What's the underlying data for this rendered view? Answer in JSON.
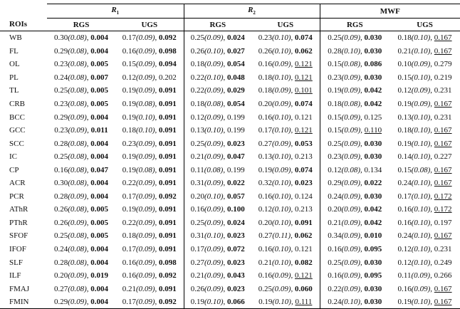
{
  "header": {
    "groups": [
      {
        "label": "R",
        "sub": "1"
      },
      {
        "label": "R",
        "sub": "2"
      },
      {
        "label": "MWF",
        "sub": ""
      }
    ],
    "roi_label": "ROIs",
    "subcols": [
      "RGS",
      "UGS",
      "RGS",
      "UGS",
      "RGS",
      "UGS"
    ]
  },
  "rows": [
    {
      "roi": "WB",
      "cells": [
        {
          "m": "0.30",
          "sd": "(0.08)",
          "p": "0.004",
          "s": "b"
        },
        {
          "m": "0.17",
          "sd": "(0.09)",
          "p": "0.092",
          "s": "b"
        },
        {
          "m": "0.25",
          "sd": "(0.09)",
          "p": "0.024",
          "s": "b"
        },
        {
          "m": "0.23",
          "sd": "(0.10)",
          "p": "0.074",
          "s": "b"
        },
        {
          "m": "0.25",
          "sd": "(0.09)",
          "p": "0.030",
          "s": "b"
        },
        {
          "m": "0.18",
          "sd": "(0.10)",
          "p": "0.167",
          "s": "u"
        }
      ]
    },
    {
      "roi": "FL",
      "cells": [
        {
          "m": "0.29",
          "sd": "(0.08)",
          "p": "0.004",
          "s": "b"
        },
        {
          "m": "0.16",
          "sd": "(0.09)",
          "p": "0.098",
          "s": "b"
        },
        {
          "m": "0.26",
          "sd": "(0.10)",
          "p": "0.027",
          "s": "b"
        },
        {
          "m": "0.26",
          "sd": "(0.10)",
          "p": "0.062",
          "s": "b"
        },
        {
          "m": "0.28",
          "sd": "(0.10)",
          "p": "0.030",
          "s": "b"
        },
        {
          "m": "0.21",
          "sd": "(0.10)",
          "p": "0.167",
          "s": "u"
        }
      ]
    },
    {
      "roi": "OL",
      "cells": [
        {
          "m": "0.23",
          "sd": "(0.08)",
          "p": "0.005",
          "s": "b"
        },
        {
          "m": "0.15",
          "sd": "(0.09)",
          "p": "0.094",
          "s": "b"
        },
        {
          "m": "0.18",
          "sd": "(0.09)",
          "p": "0.054",
          "s": "b"
        },
        {
          "m": "0.16",
          "sd": "(0.09)",
          "p": "0.121",
          "s": "u"
        },
        {
          "m": "0.15",
          "sd": "(0.08)",
          "p": "0.086",
          "s": "b"
        },
        {
          "m": "0.10",
          "sd": "(0.09)",
          "p": "0.279",
          "s": ""
        }
      ]
    },
    {
      "roi": "PL",
      "cells": [
        {
          "m": "0.24",
          "sd": "(0.08)",
          "p": "0.007",
          "s": "b"
        },
        {
          "m": "0.12",
          "sd": "(0.09)",
          "p": "0.202",
          "s": ""
        },
        {
          "m": "0.22",
          "sd": "(0.10)",
          "p": "0.048",
          "s": "b"
        },
        {
          "m": "0.18",
          "sd": "(0.10)",
          "p": "0.121",
          "s": "u"
        },
        {
          "m": "0.23",
          "sd": "(0.09)",
          "p": "0.030",
          "s": "b"
        },
        {
          "m": "0.15",
          "sd": "(0.10)",
          "p": "0.219",
          "s": ""
        }
      ]
    },
    {
      "roi": "TL",
      "cells": [
        {
          "m": "0.25",
          "sd": "(0.08)",
          "p": "0.005",
          "s": "b"
        },
        {
          "m": "0.19",
          "sd": "(0.09)",
          "p": "0.091",
          "s": "b"
        },
        {
          "m": "0.22",
          "sd": "(0.09)",
          "p": "0.029",
          "s": "b"
        },
        {
          "m": "0.18",
          "sd": "(0.09)",
          "p": "0.101",
          "s": "u"
        },
        {
          "m": "0.19",
          "sd": "(0.09)",
          "p": "0.042",
          "s": "b"
        },
        {
          "m": "0.12",
          "sd": "(0.09)",
          "p": "0.231",
          "s": ""
        }
      ]
    },
    {
      "roi": "CRB",
      "cells": [
        {
          "m": "0.23",
          "sd": "(0.08)",
          "p": "0.005",
          "s": "b"
        },
        {
          "m": "0.19",
          "sd": "(0.08)",
          "p": "0.091",
          "s": "b"
        },
        {
          "m": "0.18",
          "sd": "(0.08)",
          "p": "0.054",
          "s": "b"
        },
        {
          "m": "0.20",
          "sd": "(0.09)",
          "p": "0.074",
          "s": "b"
        },
        {
          "m": "0.18",
          "sd": "(0.08)",
          "p": "0.042",
          "s": "b"
        },
        {
          "m": "0.19",
          "sd": "(0.09)",
          "p": "0.167",
          "s": "u"
        }
      ]
    },
    {
      "roi": "BCC",
      "cells": [
        {
          "m": "0.29",
          "sd": "(0.09)",
          "p": "0.004",
          "s": "b"
        },
        {
          "m": "0.19",
          "sd": "(0.10)",
          "p": "0.091",
          "s": "b"
        },
        {
          "m": "0.12",
          "sd": "(0.09)",
          "p": "0.199",
          "s": ""
        },
        {
          "m": "0.16",
          "sd": "(0.10)",
          "p": "0.121",
          "s": ""
        },
        {
          "m": "0.15",
          "sd": "(0.09)",
          "p": "0.125",
          "s": ""
        },
        {
          "m": "0.13",
          "sd": "(0.10)",
          "p": "0.231",
          "s": ""
        }
      ]
    },
    {
      "roi": "GCC",
      "cells": [
        {
          "m": "0.23",
          "sd": "(0.09)",
          "p": "0.011",
          "s": "b"
        },
        {
          "m": "0.18",
          "sd": "(0.10)",
          "p": "0.091",
          "s": "b"
        },
        {
          "m": "0.13",
          "sd": "(0.10)",
          "p": "0.199",
          "s": ""
        },
        {
          "m": "0.17",
          "sd": "(0.10)",
          "p": "0.121",
          "s": "u"
        },
        {
          "m": "0.15",
          "sd": "(0.09)",
          "p": "0.110",
          "s": "u"
        },
        {
          "m": "0.18",
          "sd": "(0.10)",
          "p": "0.167",
          "s": "u"
        }
      ]
    },
    {
      "roi": "SCC",
      "cells": [
        {
          "m": "0.28",
          "sd": "(0.08)",
          "p": "0.004",
          "s": "b"
        },
        {
          "m": "0.23",
          "sd": "(0.09)",
          "p": "0.091",
          "s": "b"
        },
        {
          "m": "0.25",
          "sd": "(0.09)",
          "p": "0.023",
          "s": "b"
        },
        {
          "m": "0.27",
          "sd": "(0.09)",
          "p": "0.053",
          "s": "b"
        },
        {
          "m": "0.25",
          "sd": "(0.09)",
          "p": "0.030",
          "s": "b"
        },
        {
          "m": "0.19",
          "sd": "(0.10)",
          "p": "0.167",
          "s": "u"
        }
      ]
    },
    {
      "roi": "IC",
      "cells": [
        {
          "m": "0.25",
          "sd": "(0.08)",
          "p": "0.004",
          "s": "b"
        },
        {
          "m": "0.19",
          "sd": "(0.09)",
          "p": "0.091",
          "s": "b"
        },
        {
          "m": "0.21",
          "sd": "(0.09)",
          "p": "0.047",
          "s": "b"
        },
        {
          "m": "0.13",
          "sd": "(0.10)",
          "p": "0.213",
          "s": ""
        },
        {
          "m": "0.23",
          "sd": "(0.09)",
          "p": "0.030",
          "s": "b"
        },
        {
          "m": "0.14",
          "sd": "(0.10)",
          "p": "0.227",
          "s": ""
        }
      ]
    },
    {
      "roi": "CP",
      "cells": [
        {
          "m": "0.16",
          "sd": "(0.08)",
          "p": "0.047",
          "s": "b"
        },
        {
          "m": "0.19",
          "sd": "(0.08)",
          "p": "0.091",
          "s": "b"
        },
        {
          "m": "0.11",
          "sd": "(0.08)",
          "p": "0.199",
          "s": ""
        },
        {
          "m": "0.19",
          "sd": "(0.09)",
          "p": "0.074",
          "s": "b"
        },
        {
          "m": "0.12",
          "sd": "(0.08)",
          "p": "0.134",
          "s": ""
        },
        {
          "m": "0.15",
          "sd": "(0.08)",
          "p": "0.167",
          "s": "u"
        }
      ]
    },
    {
      "roi": "ACR",
      "cells": [
        {
          "m": "0.30",
          "sd": "(0.08)",
          "p": "0.004",
          "s": "b"
        },
        {
          "m": "0.22",
          "sd": "(0.09)",
          "p": "0.091",
          "s": "b"
        },
        {
          "m": "0.31",
          "sd": "(0.09)",
          "p": "0.022",
          "s": "b"
        },
        {
          "m": "0.32",
          "sd": "(0.10)",
          "p": "0.023",
          "s": "b"
        },
        {
          "m": "0.29",
          "sd": "(0.09)",
          "p": "0.022",
          "s": "b"
        },
        {
          "m": "0.24",
          "sd": "(0.10)",
          "p": "0.167",
          "s": "u"
        }
      ]
    },
    {
      "roi": "PCR",
      "cells": [
        {
          "m": "0.28",
          "sd": "(0.09)",
          "p": "0.004",
          "s": "b"
        },
        {
          "m": "0.17",
          "sd": "(0.09)",
          "p": "0.092",
          "s": "b"
        },
        {
          "m": "0.20",
          "sd": "(0.10)",
          "p": "0.057",
          "s": "b"
        },
        {
          "m": "0.16",
          "sd": "(0.10)",
          "p": "0.124",
          "s": ""
        },
        {
          "m": "0.24",
          "sd": "(0.09)",
          "p": "0.030",
          "s": "b"
        },
        {
          "m": "0.17",
          "sd": "(0.10)",
          "p": "0.172",
          "s": "u"
        }
      ]
    },
    {
      "roi": "AThR",
      "cells": [
        {
          "m": "0.26",
          "sd": "(0.08)",
          "p": "0.005",
          "s": "b"
        },
        {
          "m": "0.19",
          "sd": "(0.09)",
          "p": "0.091",
          "s": "b"
        },
        {
          "m": "0.16",
          "sd": "(0.09)",
          "p": "0.100",
          "s": "b"
        },
        {
          "m": "0.12",
          "sd": "(0.10)",
          "p": "0.213",
          "s": ""
        },
        {
          "m": "0.20",
          "sd": "(0.09)",
          "p": "0.042",
          "s": "b"
        },
        {
          "m": "0.16",
          "sd": "(0.10)",
          "p": "0.172",
          "s": "u"
        }
      ]
    },
    {
      "roi": "PThR",
      "cells": [
        {
          "m": "0.26",
          "sd": "(0.09)",
          "p": "0.005",
          "s": "b"
        },
        {
          "m": "0.22",
          "sd": "(0.09)",
          "p": "0.091",
          "s": "b"
        },
        {
          "m": "0.25",
          "sd": "(0.09)",
          "p": "0.024",
          "s": "b"
        },
        {
          "m": "0.20",
          "sd": "(0.10)",
          "p": "0.091",
          "s": "b"
        },
        {
          "m": "0.21",
          "sd": "(0.09)",
          "p": "0.042",
          "s": "b"
        },
        {
          "m": "0.16",
          "sd": "(0.10)",
          "p": "0.197",
          "s": ""
        }
      ]
    },
    {
      "roi": "SFOF",
      "cells": [
        {
          "m": "0.25",
          "sd": "(0.08)",
          "p": "0.005",
          "s": "b"
        },
        {
          "m": "0.18",
          "sd": "(0.09)",
          "p": "0.091",
          "s": "b"
        },
        {
          "m": "0.31",
          "sd": "(0.10)",
          "p": "0.023",
          "s": "b"
        },
        {
          "m": "0.27",
          "sd": "(0.11)",
          "p": "0.062",
          "s": "b"
        },
        {
          "m": "0.34",
          "sd": "(0.09)",
          "p": "0.010",
          "s": "b"
        },
        {
          "m": "0.24",
          "sd": "(0.10)",
          "p": "0.167",
          "s": "u"
        }
      ]
    },
    {
      "roi": "IFOF",
      "cells": [
        {
          "m": "0.24",
          "sd": "(0.08)",
          "p": "0.004",
          "s": "b"
        },
        {
          "m": "0.17",
          "sd": "(0.09)",
          "p": "0.091",
          "s": "b"
        },
        {
          "m": "0.17",
          "sd": "(0.09)",
          "p": "0.072",
          "s": "b"
        },
        {
          "m": "0.16",
          "sd": "(0.10)",
          "p": "0.121",
          "s": ""
        },
        {
          "m": "0.16",
          "sd": "(0.09)",
          "p": "0.095",
          "s": "b"
        },
        {
          "m": "0.12",
          "sd": "(0.10)",
          "p": "0.231",
          "s": ""
        }
      ]
    },
    {
      "roi": "SLF",
      "cells": [
        {
          "m": "0.28",
          "sd": "(0.08)",
          "p": "0.004",
          "s": "b"
        },
        {
          "m": "0.16",
          "sd": "(0.09)",
          "p": "0.098",
          "s": "b"
        },
        {
          "m": "0.27",
          "sd": "(0.09)",
          "p": "0.023",
          "s": "b"
        },
        {
          "m": "0.21",
          "sd": "(0.10)",
          "p": "0.082",
          "s": "b"
        },
        {
          "m": "0.25",
          "sd": "(0.09)",
          "p": "0.030",
          "s": "b"
        },
        {
          "m": "0.12",
          "sd": "(0.10)",
          "p": "0.249",
          "s": ""
        }
      ]
    },
    {
      "roi": "ILF",
      "cells": [
        {
          "m": "0.20",
          "sd": "(0.09)",
          "p": "0.019",
          "s": "b"
        },
        {
          "m": "0.16",
          "sd": "(0.09)",
          "p": "0.092",
          "s": "b"
        },
        {
          "m": "0.21",
          "sd": "(0.09)",
          "p": "0.043",
          "s": "b"
        },
        {
          "m": "0.16",
          "sd": "(0.09)",
          "p": "0.121",
          "s": "u"
        },
        {
          "m": "0.16",
          "sd": "(0.09)",
          "p": "0.095",
          "s": "b"
        },
        {
          "m": "0.11",
          "sd": "(0.09)",
          "p": "0.266",
          "s": ""
        }
      ]
    },
    {
      "roi": "FMAJ",
      "cells": [
        {
          "m": "0.27",
          "sd": "(0.08)",
          "p": "0.004",
          "s": "b"
        },
        {
          "m": "0.21",
          "sd": "(0.09)",
          "p": "0.091",
          "s": "b"
        },
        {
          "m": "0.26",
          "sd": "(0.09)",
          "p": "0.023",
          "s": "b"
        },
        {
          "m": "0.25",
          "sd": "(0.09)",
          "p": "0.060",
          "s": "b"
        },
        {
          "m": "0.22",
          "sd": "(0.09)",
          "p": "0.030",
          "s": "b"
        },
        {
          "m": "0.16",
          "sd": "(0.09)",
          "p": "0.167",
          "s": "u"
        }
      ]
    },
    {
      "roi": "FMIN",
      "cells": [
        {
          "m": "0.29",
          "sd": "(0.09)",
          "p": "0.004",
          "s": "b"
        },
        {
          "m": "0.17",
          "sd": "(0.09)",
          "p": "0.092",
          "s": "b"
        },
        {
          "m": "0.19",
          "sd": "(0.10)",
          "p": "0.066",
          "s": "b"
        },
        {
          "m": "0.19",
          "sd": "(0.10)",
          "p": "0.111",
          "s": "u"
        },
        {
          "m": "0.24",
          "sd": "(0.10)",
          "p": "0.030",
          "s": "b"
        },
        {
          "m": "0.19",
          "sd": "(0.10)",
          "p": "0.167",
          "s": "u"
        }
      ]
    }
  ]
}
